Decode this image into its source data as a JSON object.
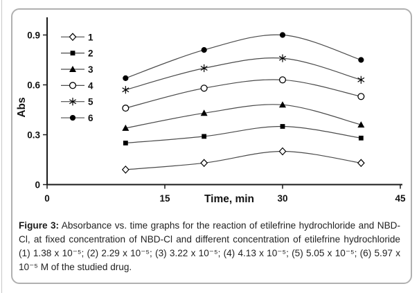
{
  "chart_data": {
    "type": "line",
    "title": "",
    "xlabel": "Time, min",
    "ylabel": "Abs",
    "x": [
      10,
      20,
      30,
      40
    ],
    "xlim": [
      0,
      45
    ],
    "ylim": [
      0,
      1.0
    ],
    "xticks": [
      0,
      15,
      30,
      45
    ],
    "xtick_labels": [
      "0",
      "15",
      "30",
      "45"
    ],
    "yticks": [
      0,
      0.3,
      0.6,
      0.9
    ],
    "ytick_labels": [
      "0",
      "0.3",
      "0.6",
      "0.9"
    ],
    "grid": false,
    "legend_position": "top-left",
    "series": [
      {
        "name": "1",
        "marker": "diamond-open",
        "values": [
          0.09,
          0.13,
          0.2,
          0.13
        ]
      },
      {
        "name": "2",
        "marker": "square-filled",
        "values": [
          0.25,
          0.29,
          0.35,
          0.28
        ]
      },
      {
        "name": "3",
        "marker": "triangle-filled",
        "values": [
          0.34,
          0.43,
          0.48,
          0.36
        ]
      },
      {
        "name": "4",
        "marker": "circle-open",
        "values": [
          0.46,
          0.58,
          0.63,
          0.53
        ]
      },
      {
        "name": "5",
        "marker": "asterisk",
        "values": [
          0.57,
          0.7,
          0.76,
          0.63
        ]
      },
      {
        "name": "6",
        "marker": "circle-filled",
        "values": [
          0.64,
          0.81,
          0.9,
          0.75
        ]
      }
    ],
    "colors": {
      "line": "#4a4a4a",
      "marker": "#000000",
      "text": "#111111"
    }
  },
  "figure": {
    "caption_label": "Figure 3:",
    "caption_body": "Absorbance vs. time graphs for the reaction of etilefrine hydrochloride and NBD-Cl, at fixed concentration of NBD-Cl and different concentration of etilefrine hydrochloride (1) 1.38 x 10⁻⁵; (2) 2.29 x 10⁻⁵; (3) 3.22 x 10⁻⁵; (4) 4.13 x 10⁻⁵; (5) 5.05 x 10⁻⁵; (6) 5.97 x 10⁻⁵ M of the studied drug."
  }
}
